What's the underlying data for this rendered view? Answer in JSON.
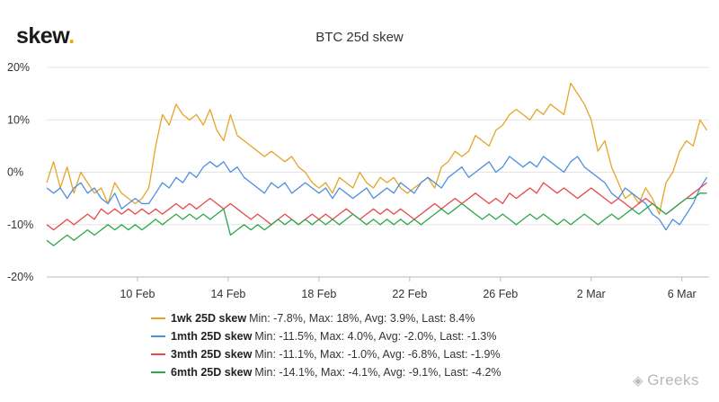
{
  "brand": {
    "name": "skew",
    "dot": "."
  },
  "watermark": {
    "icon": "wechat-icon",
    "text": "Greeks"
  },
  "chart_data": {
    "type": "line",
    "title": "BTC 25d skew",
    "xlabel": "",
    "ylabel": "",
    "x_domain": [
      6.0,
      35.2
    ],
    "x_ticks": [
      {
        "x": 10,
        "label": "10 Feb"
      },
      {
        "x": 14,
        "label": "14 Feb"
      },
      {
        "x": 18,
        "label": "18 Feb"
      },
      {
        "x": 22,
        "label": "22 Feb"
      },
      {
        "x": 26,
        "label": "26 Feb"
      },
      {
        "x": 30,
        "label": "2 Mar"
      },
      {
        "x": 34,
        "label": "6 Mar"
      }
    ],
    "ylim": [
      -20,
      20
    ],
    "y_ticks": [
      {
        "y": 20,
        "label": "20%"
      },
      {
        "y": 10,
        "label": "10%"
      },
      {
        "y": 0,
        "label": "0%"
      },
      {
        "y": -10,
        "label": "-10%"
      },
      {
        "y": -20,
        "label": "-20%"
      }
    ],
    "grid": "horizontal",
    "series": [
      {
        "name": "1wk 25D skew",
        "stats": "Min: -7.8%, Max: 18%, Avg: 3.9%, Last: 8.4%",
        "color": "#E5A526",
        "x": [
          6.0,
          6.3,
          6.6,
          6.9,
          7.2,
          7.5,
          7.8,
          8.1,
          8.4,
          8.7,
          9.0,
          9.3,
          9.6,
          9.9,
          10.2,
          10.5,
          10.8,
          11.1,
          11.4,
          11.7,
          12.0,
          12.3,
          12.6,
          12.9,
          13.2,
          13.5,
          13.8,
          14.1,
          14.4,
          14.7,
          15.0,
          15.3,
          15.6,
          15.9,
          16.2,
          16.5,
          16.8,
          17.1,
          17.4,
          17.7,
          18.0,
          18.3,
          18.6,
          18.9,
          19.2,
          19.5,
          19.8,
          20.1,
          20.4,
          20.7,
          21.0,
          21.3,
          21.6,
          21.9,
          22.2,
          22.5,
          22.8,
          23.1,
          23.4,
          23.7,
          24.0,
          24.3,
          24.6,
          24.9,
          25.2,
          25.5,
          25.8,
          26.1,
          26.4,
          26.7,
          27.0,
          27.3,
          27.6,
          27.9,
          28.2,
          28.5,
          28.8,
          29.1,
          29.4,
          29.7,
          30.0,
          30.3,
          30.6,
          30.9,
          31.2,
          31.5,
          31.8,
          32.1,
          32.4,
          32.7,
          33.0,
          33.3,
          33.6,
          33.9,
          34.2,
          34.5,
          34.8,
          35.1
        ],
        "values": [
          -2,
          2,
          -3,
          1,
          -4,
          0,
          -2,
          -4,
          -3,
          -6,
          -2,
          -4,
          -5,
          -6,
          -5,
          -3,
          5,
          11,
          9,
          13,
          11,
          10,
          11,
          9,
          12,
          8,
          6,
          11,
          7,
          6,
          5,
          4,
          3,
          4,
          3,
          2,
          3,
          1,
          0,
          -2,
          -3,
          -2,
          -4,
          -1,
          -2,
          -3,
          0,
          -2,
          -3,
          -1,
          -2,
          -1,
          -3,
          -4,
          -3,
          -2,
          -1,
          -3,
          1,
          2,
          4,
          3,
          4,
          7,
          6,
          5,
          8,
          9,
          11,
          12,
          11,
          10,
          12,
          11,
          13,
          12,
          11,
          17,
          15,
          13,
          10,
          4,
          6,
          1,
          -2,
          -5,
          -4,
          -6,
          -3,
          -5,
          -8,
          -2,
          0,
          4,
          6,
          5,
          10,
          8
        ]
      },
      {
        "name": "1mth 25D skew",
        "stats": "Min: -11.5%, Max: 4.0%, Avg: -2.0%, Last: -1.3%",
        "color": "#4F8FE0",
        "x": [
          6.0,
          6.3,
          6.6,
          6.9,
          7.2,
          7.5,
          7.8,
          8.1,
          8.4,
          8.7,
          9.0,
          9.3,
          9.6,
          9.9,
          10.2,
          10.5,
          10.8,
          11.1,
          11.4,
          11.7,
          12.0,
          12.3,
          12.6,
          12.9,
          13.2,
          13.5,
          13.8,
          14.1,
          14.4,
          14.7,
          15.0,
          15.3,
          15.6,
          15.9,
          16.2,
          16.5,
          16.8,
          17.1,
          17.4,
          17.7,
          18.0,
          18.3,
          18.6,
          18.9,
          19.2,
          19.5,
          19.8,
          20.1,
          20.4,
          20.7,
          21.0,
          21.3,
          21.6,
          21.9,
          22.2,
          22.5,
          22.8,
          23.1,
          23.4,
          23.7,
          24.0,
          24.3,
          24.6,
          24.9,
          25.2,
          25.5,
          25.8,
          26.1,
          26.4,
          26.7,
          27.0,
          27.3,
          27.6,
          27.9,
          28.2,
          28.5,
          28.8,
          29.1,
          29.4,
          29.7,
          30.0,
          30.3,
          30.6,
          30.9,
          31.2,
          31.5,
          31.8,
          32.1,
          32.4,
          32.7,
          33.0,
          33.3,
          33.6,
          33.9,
          34.2,
          34.5,
          34.8,
          35.1
        ],
        "values": [
          -3,
          -4,
          -3,
          -5,
          -3,
          -2,
          -4,
          -3,
          -5,
          -6,
          -4,
          -7,
          -6,
          -5,
          -6,
          -6,
          -4,
          -2,
          -3,
          -1,
          -2,
          0,
          -1,
          1,
          2,
          1,
          2,
          0,
          1,
          -1,
          -2,
          -3,
          -4,
          -2,
          -3,
          -2,
          -4,
          -3,
          -2,
          -3,
          -4,
          -3,
          -5,
          -3,
          -4,
          -5,
          -4,
          -3,
          -5,
          -4,
          -3,
          -4,
          -2,
          -3,
          -4,
          -2,
          -1,
          -2,
          -3,
          -1,
          0,
          1,
          -1,
          0,
          1,
          2,
          0,
          1,
          3,
          2,
          1,
          2,
          1,
          3,
          2,
          1,
          0,
          2,
          3,
          1,
          0,
          -1,
          -2,
          -4,
          -5,
          -3,
          -4,
          -5,
          -6,
          -8,
          -9,
          -11,
          -9,
          -10,
          -8,
          -6,
          -3,
          -1
        ]
      },
      {
        "name": "3mth 25D skew",
        "stats": "Min: -11.1%, Max: -1.0%, Avg: -6.8%, Last: -1.9%",
        "color": "#E8484B",
        "x": [
          6.0,
          6.3,
          6.6,
          6.9,
          7.2,
          7.5,
          7.8,
          8.1,
          8.4,
          8.7,
          9.0,
          9.3,
          9.6,
          9.9,
          10.2,
          10.5,
          10.8,
          11.1,
          11.4,
          11.7,
          12.0,
          12.3,
          12.6,
          12.9,
          13.2,
          13.5,
          13.8,
          14.1,
          14.4,
          14.7,
          15.0,
          15.3,
          15.6,
          15.9,
          16.2,
          16.5,
          16.8,
          17.1,
          17.4,
          17.7,
          18.0,
          18.3,
          18.6,
          18.9,
          19.2,
          19.5,
          19.8,
          20.1,
          20.4,
          20.7,
          21.0,
          21.3,
          21.6,
          21.9,
          22.2,
          22.5,
          22.8,
          23.1,
          23.4,
          23.7,
          24.0,
          24.3,
          24.6,
          24.9,
          25.2,
          25.5,
          25.8,
          26.1,
          26.4,
          26.7,
          27.0,
          27.3,
          27.6,
          27.9,
          28.2,
          28.5,
          28.8,
          29.1,
          29.4,
          29.7,
          30.0,
          30.3,
          30.6,
          30.9,
          31.2,
          31.5,
          31.8,
          32.1,
          32.4,
          32.7,
          33.0,
          33.3,
          33.6,
          33.9,
          34.2,
          34.5,
          34.8,
          35.1
        ],
        "values": [
          -10,
          -11,
          -10,
          -9,
          -10,
          -9,
          -8,
          -9,
          -7,
          -8,
          -7,
          -8,
          -7,
          -8,
          -7,
          -8,
          -7,
          -8,
          -7,
          -6,
          -7,
          -6,
          -7,
          -6,
          -5,
          -6,
          -7,
          -6,
          -7,
          -8,
          -9,
          -8,
          -9,
          -10,
          -9,
          -8,
          -9,
          -10,
          -9,
          -8,
          -9,
          -8,
          -9,
          -8,
          -7,
          -8,
          -9,
          -8,
          -7,
          -8,
          -7,
          -8,
          -7,
          -8,
          -9,
          -8,
          -7,
          -6,
          -7,
          -6,
          -5,
          -6,
          -5,
          -4,
          -5,
          -6,
          -5,
          -6,
          -4,
          -5,
          -4,
          -3,
          -4,
          -2,
          -3,
          -4,
          -3,
          -4,
          -5,
          -4,
          -3,
          -4,
          -5,
          -6,
          -5,
          -6,
          -7,
          -6,
          -5,
          -6,
          -7,
          -8,
          -7,
          -6,
          -5,
          -4,
          -3,
          -2
        ]
      },
      {
        "name": "6mth 25D skew",
        "stats": "Min: -14.1%, Max: -4.1%, Avg: -9.1%, Last: -4.2%",
        "color": "#2BA84A",
        "x": [
          6.0,
          6.3,
          6.6,
          6.9,
          7.2,
          7.5,
          7.8,
          8.1,
          8.4,
          8.7,
          9.0,
          9.3,
          9.6,
          9.9,
          10.2,
          10.5,
          10.8,
          11.1,
          11.4,
          11.7,
          12.0,
          12.3,
          12.6,
          12.9,
          13.2,
          13.5,
          13.8,
          14.1,
          14.4,
          14.7,
          15.0,
          15.3,
          15.6,
          15.9,
          16.2,
          16.5,
          16.8,
          17.1,
          17.4,
          17.7,
          18.0,
          18.3,
          18.6,
          18.9,
          19.2,
          19.5,
          19.8,
          20.1,
          20.4,
          20.7,
          21.0,
          21.3,
          21.6,
          21.9,
          22.2,
          22.5,
          22.8,
          23.1,
          23.4,
          23.7,
          24.0,
          24.3,
          24.6,
          24.9,
          25.2,
          25.5,
          25.8,
          26.1,
          26.4,
          26.7,
          27.0,
          27.3,
          27.6,
          27.9,
          28.2,
          28.5,
          28.8,
          29.1,
          29.4,
          29.7,
          30.0,
          30.3,
          30.6,
          30.9,
          31.2,
          31.5,
          31.8,
          32.1,
          32.4,
          32.7,
          33.0,
          33.3,
          33.6,
          33.9,
          34.2,
          34.5,
          34.8,
          35.1
        ],
        "values": [
          -13,
          -14,
          -13,
          -12,
          -13,
          -12,
          -11,
          -12,
          -11,
          -10,
          -11,
          -10,
          -11,
          -10,
          -11,
          -10,
          -9,
          -10,
          -9,
          -8,
          -9,
          -8,
          -9,
          -8,
          -9,
          -8,
          -7,
          -12,
          -11,
          -10,
          -11,
          -10,
          -11,
          -10,
          -9,
          -10,
          -9,
          -10,
          -9,
          -10,
          -9,
          -10,
          -9,
          -10,
          -9,
          -8,
          -9,
          -10,
          -9,
          -10,
          -9,
          -10,
          -9,
          -10,
          -9,
          -10,
          -9,
          -8,
          -7,
          -8,
          -7,
          -6,
          -7,
          -8,
          -9,
          -8,
          -9,
          -8,
          -9,
          -10,
          -9,
          -8,
          -9,
          -8,
          -9,
          -10,
          -9,
          -10,
          -9,
          -8,
          -9,
          -10,
          -9,
          -8,
          -9,
          -8,
          -7,
          -8,
          -7,
          -6,
          -7,
          -8,
          -7,
          -6,
          -5,
          -5,
          -4,
          -4
        ]
      }
    ]
  }
}
